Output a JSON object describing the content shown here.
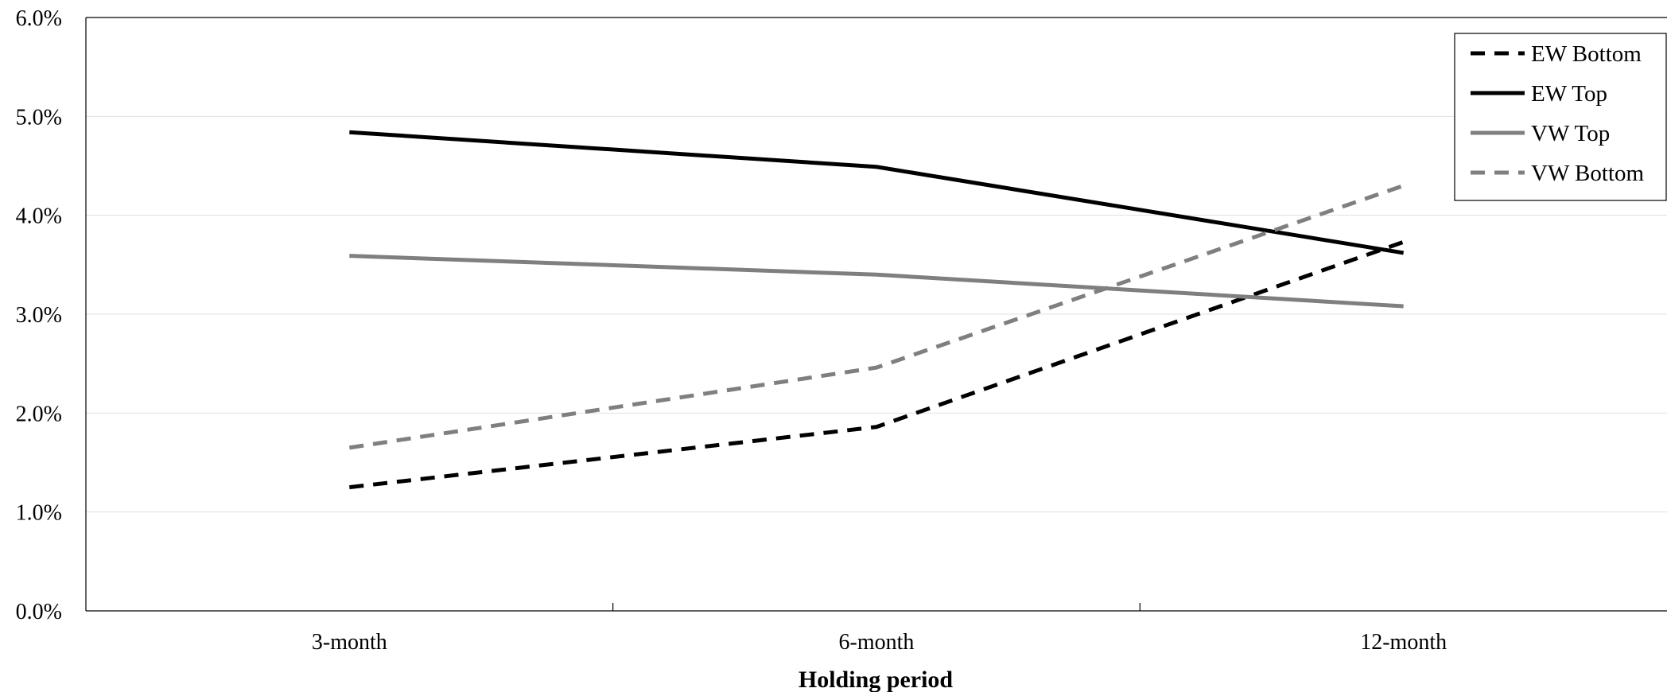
{
  "chart_data": {
    "type": "line",
    "title": "",
    "xlabel": "Holding period",
    "ylabel": "",
    "categories": [
      "3-month",
      "6-month",
      "12-month"
    ],
    "ylim": [
      0,
      6
    ],
    "yticks": [
      "0.0%",
      "1.0%",
      "2.0%",
      "3.0%",
      "4.0%",
      "5.0%",
      "6.0%"
    ],
    "y_unit": "%",
    "grid": true,
    "legend_position": "top-right",
    "series": [
      {
        "name": "EW Bottom",
        "values": [
          1.25,
          1.86,
          3.73
        ],
        "color": "#000000",
        "dashed": true
      },
      {
        "name": "EW Top",
        "values": [
          4.84,
          4.49,
          3.62
        ],
        "color": "#000000",
        "dashed": false
      },
      {
        "name": "VW Top",
        "values": [
          3.59,
          3.4,
          3.08
        ],
        "color": "#7f7f7f",
        "dashed": false
      },
      {
        "name": "VW Bottom",
        "values": [
          1.65,
          2.46,
          4.3
        ],
        "color": "#7f7f7f",
        "dashed": true
      }
    ]
  }
}
